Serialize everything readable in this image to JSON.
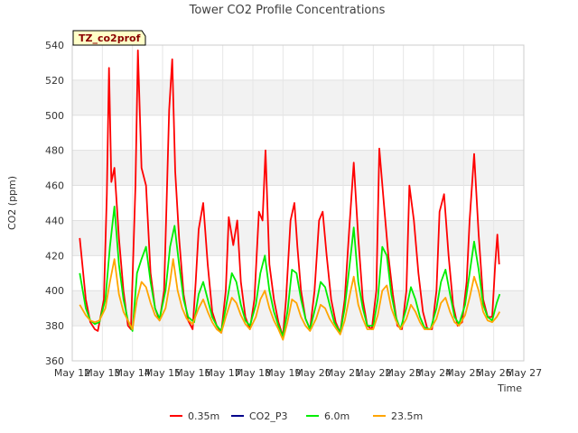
{
  "chart_data": {
    "type": "line",
    "title": "Tower CO2 Profile Concentrations",
    "xlabel": "Time",
    "ylabel": "CO2 (ppm)",
    "tag": "TZ_co2prof",
    "ylim": [
      360,
      540
    ],
    "yticks": [
      360,
      380,
      400,
      420,
      440,
      460,
      480,
      500,
      520,
      540
    ],
    "xlim": [
      12,
      27
    ],
    "xticks": [
      {
        "v": 12,
        "label": "May 12"
      },
      {
        "v": 13,
        "label": "May 13"
      },
      {
        "v": 14,
        "label": "May 14"
      },
      {
        "v": 15,
        "label": "May 15"
      },
      {
        "v": 16,
        "label": "May 16"
      },
      {
        "v": 17,
        "label": "May 17"
      },
      {
        "v": 18,
        "label": "May 18"
      },
      {
        "v": 19,
        "label": "May 19"
      },
      {
        "v": 20,
        "label": "May 20"
      },
      {
        "v": 21,
        "label": "May 21"
      },
      {
        "v": 22,
        "label": "May 22"
      },
      {
        "v": 23,
        "label": "May 23"
      },
      {
        "v": 24,
        "label": "May 24"
      },
      {
        "v": 25,
        "label": "May 25"
      },
      {
        "v": 26,
        "label": "May 26"
      },
      {
        "v": 27,
        "label": "May 27"
      }
    ],
    "series": [
      {
        "name": "0.35m",
        "color": "#ff0000",
        "points": [
          [
            12.25,
            430
          ],
          [
            12.45,
            395
          ],
          [
            12.6,
            382
          ],
          [
            12.75,
            378
          ],
          [
            12.85,
            377
          ],
          [
            13.05,
            395
          ],
          [
            13.15,
            455
          ],
          [
            13.22,
            527
          ],
          [
            13.3,
            462
          ],
          [
            13.4,
            470
          ],
          [
            13.55,
            430
          ],
          [
            13.7,
            400
          ],
          [
            13.85,
            380
          ],
          [
            13.95,
            378
          ],
          [
            14.1,
            460
          ],
          [
            14.18,
            537
          ],
          [
            14.3,
            470
          ],
          [
            14.45,
            460
          ],
          [
            14.6,
            410
          ],
          [
            14.75,
            390
          ],
          [
            14.9,
            383
          ],
          [
            15.05,
            400
          ],
          [
            15.15,
            460
          ],
          [
            15.22,
            503
          ],
          [
            15.32,
            532
          ],
          [
            15.42,
            468
          ],
          [
            15.55,
            430
          ],
          [
            15.7,
            398
          ],
          [
            15.85,
            383
          ],
          [
            16.0,
            378
          ],
          [
            16.1,
            405
          ],
          [
            16.2,
            435
          ],
          [
            16.35,
            450
          ],
          [
            16.5,
            415
          ],
          [
            16.65,
            388
          ],
          [
            16.8,
            380
          ],
          [
            16.95,
            376
          ],
          [
            17.1,
            400
          ],
          [
            17.2,
            442
          ],
          [
            17.35,
            426
          ],
          [
            17.48,
            440
          ],
          [
            17.6,
            405
          ],
          [
            17.75,
            385
          ],
          [
            17.9,
            378
          ],
          [
            18.05,
            395
          ],
          [
            18.2,
            445
          ],
          [
            18.32,
            440
          ],
          [
            18.42,
            480
          ],
          [
            18.55,
            415
          ],
          [
            18.7,
            395
          ],
          [
            18.85,
            382
          ],
          [
            19.0,
            374
          ],
          [
            19.1,
            395
          ],
          [
            19.25,
            440
          ],
          [
            19.38,
            450
          ],
          [
            19.48,
            425
          ],
          [
            19.6,
            400
          ],
          [
            19.75,
            384
          ],
          [
            19.9,
            378
          ],
          [
            20.05,
            400
          ],
          [
            20.2,
            440
          ],
          [
            20.32,
            445
          ],
          [
            20.45,
            420
          ],
          [
            20.6,
            395
          ],
          [
            20.75,
            382
          ],
          [
            20.9,
            376
          ],
          [
            21.05,
            395
          ],
          [
            21.2,
            435
          ],
          [
            21.35,
            473
          ],
          [
            21.5,
            430
          ],
          [
            21.65,
            395
          ],
          [
            21.8,
            380
          ],
          [
            21.95,
            378
          ],
          [
            22.1,
            400
          ],
          [
            22.2,
            481
          ],
          [
            22.35,
            450
          ],
          [
            22.5,
            420
          ],
          [
            22.65,
            398
          ],
          [
            22.8,
            380
          ],
          [
            22.95,
            378
          ],
          [
            23.1,
            400
          ],
          [
            23.2,
            460
          ],
          [
            23.35,
            440
          ],
          [
            23.5,
            410
          ],
          [
            23.65,
            388
          ],
          [
            23.8,
            378
          ],
          [
            23.95,
            378
          ],
          [
            24.1,
            400
          ],
          [
            24.2,
            445
          ],
          [
            24.35,
            455
          ],
          [
            24.5,
            420
          ],
          [
            24.65,
            392
          ],
          [
            24.8,
            380
          ],
          [
            24.95,
            382
          ],
          [
            25.1,
            405
          ],
          [
            25.2,
            440
          ],
          [
            25.35,
            478
          ],
          [
            25.5,
            432
          ],
          [
            25.65,
            395
          ],
          [
            25.8,
            385
          ],
          [
            25.95,
            385
          ],
          [
            26.05,
            415
          ],
          [
            26.12,
            432
          ],
          [
            26.18,
            415
          ]
        ]
      },
      {
        "name": "CO2_P3",
        "color": "#00008b",
        "points": []
      },
      {
        "name": "6.0m",
        "color": "#00ee00",
        "points": [
          [
            12.25,
            410
          ],
          [
            12.45,
            390
          ],
          [
            12.6,
            383
          ],
          [
            12.75,
            381
          ],
          [
            12.9,
            382
          ],
          [
            13.1,
            395
          ],
          [
            13.25,
            425
          ],
          [
            13.4,
            448
          ],
          [
            13.55,
            415
          ],
          [
            13.7,
            395
          ],
          [
            13.85,
            383
          ],
          [
            14.0,
            377
          ],
          [
            14.15,
            410
          ],
          [
            14.3,
            418
          ],
          [
            14.45,
            425
          ],
          [
            14.6,
            405
          ],
          [
            14.75,
            390
          ],
          [
            14.9,
            384
          ],
          [
            15.1,
            400
          ],
          [
            15.25,
            425
          ],
          [
            15.4,
            437
          ],
          [
            15.55,
            415
          ],
          [
            15.7,
            395
          ],
          [
            15.85,
            385
          ],
          [
            16.05,
            382
          ],
          [
            16.2,
            398
          ],
          [
            16.35,
            405
          ],
          [
            16.5,
            395
          ],
          [
            16.65,
            385
          ],
          [
            16.8,
            380
          ],
          [
            16.95,
            377
          ],
          [
            17.1,
            390
          ],
          [
            17.3,
            410
          ],
          [
            17.45,
            405
          ],
          [
            17.6,
            392
          ],
          [
            17.75,
            383
          ],
          [
            17.9,
            380
          ],
          [
            18.1,
            392
          ],
          [
            18.25,
            410
          ],
          [
            18.4,
            420
          ],
          [
            18.55,
            400
          ],
          [
            18.7,
            388
          ],
          [
            18.85,
            380
          ],
          [
            19.0,
            374
          ],
          [
            19.15,
            388
          ],
          [
            19.3,
            412
          ],
          [
            19.45,
            410
          ],
          [
            19.6,
            395
          ],
          [
            19.75,
            384
          ],
          [
            19.9,
            378
          ],
          [
            20.1,
            392
          ],
          [
            20.25,
            405
          ],
          [
            20.4,
            402
          ],
          [
            20.55,
            392
          ],
          [
            20.7,
            382
          ],
          [
            20.9,
            376
          ],
          [
            21.05,
            390
          ],
          [
            21.25,
            420
          ],
          [
            21.35,
            436
          ],
          [
            21.5,
            405
          ],
          [
            21.65,
            390
          ],
          [
            21.8,
            380
          ],
          [
            22.0,
            380
          ],
          [
            22.15,
            395
          ],
          [
            22.3,
            425
          ],
          [
            22.45,
            420
          ],
          [
            22.6,
            398
          ],
          [
            22.75,
            385
          ],
          [
            22.9,
            378
          ],
          [
            23.1,
            390
          ],
          [
            23.25,
            402
          ],
          [
            23.4,
            395
          ],
          [
            23.55,
            385
          ],
          [
            23.7,
            379
          ],
          [
            23.9,
            378
          ],
          [
            24.1,
            390
          ],
          [
            24.25,
            405
          ],
          [
            24.4,
            412
          ],
          [
            24.55,
            398
          ],
          [
            24.7,
            385
          ],
          [
            24.85,
            381
          ],
          [
            25.05,
            392
          ],
          [
            25.2,
            410
          ],
          [
            25.35,
            428
          ],
          [
            25.5,
            412
          ],
          [
            25.65,
            392
          ],
          [
            25.8,
            385
          ],
          [
            25.95,
            383
          ],
          [
            26.1,
            393
          ],
          [
            26.2,
            398
          ]
        ]
      },
      {
        "name": "23.5m",
        "color": "#ffa500",
        "points": [
          [
            12.25,
            392
          ],
          [
            12.45,
            386
          ],
          [
            12.6,
            383
          ],
          [
            12.75,
            382
          ],
          [
            12.9,
            383
          ],
          [
            13.1,
            390
          ],
          [
            13.25,
            405
          ],
          [
            13.4,
            418
          ],
          [
            13.55,
            398
          ],
          [
            13.7,
            388
          ],
          [
            13.85,
            383
          ],
          [
            14.0,
            378
          ],
          [
            14.15,
            395
          ],
          [
            14.3,
            405
          ],
          [
            14.45,
            402
          ],
          [
            14.6,
            393
          ],
          [
            14.75,
            386
          ],
          [
            14.9,
            383
          ],
          [
            15.1,
            390
          ],
          [
            15.25,
            405
          ],
          [
            15.35,
            418
          ],
          [
            15.5,
            400
          ],
          [
            15.65,
            390
          ],
          [
            15.8,
            384
          ],
          [
            16.0,
            381
          ],
          [
            16.2,
            390
          ],
          [
            16.35,
            395
          ],
          [
            16.5,
            388
          ],
          [
            16.65,
            382
          ],
          [
            16.8,
            378
          ],
          [
            16.95,
            376
          ],
          [
            17.1,
            385
          ],
          [
            17.3,
            396
          ],
          [
            17.45,
            393
          ],
          [
            17.6,
            386
          ],
          [
            17.75,
            381
          ],
          [
            17.9,
            378
          ],
          [
            18.1,
            385
          ],
          [
            18.25,
            395
          ],
          [
            18.4,
            400
          ],
          [
            18.55,
            390
          ],
          [
            18.7,
            383
          ],
          [
            18.85,
            378
          ],
          [
            19.0,
            372
          ],
          [
            19.15,
            382
          ],
          [
            19.3,
            395
          ],
          [
            19.45,
            393
          ],
          [
            19.6,
            385
          ],
          [
            19.75,
            380
          ],
          [
            19.9,
            377
          ],
          [
            20.1,
            384
          ],
          [
            20.25,
            392
          ],
          [
            20.4,
            390
          ],
          [
            20.55,
            384
          ],
          [
            20.7,
            380
          ],
          [
            20.9,
            375
          ],
          [
            21.05,
            383
          ],
          [
            21.25,
            400
          ],
          [
            21.35,
            408
          ],
          [
            21.5,
            392
          ],
          [
            21.65,
            384
          ],
          [
            21.8,
            378
          ],
          [
            22.0,
            378
          ],
          [
            22.15,
            386
          ],
          [
            22.3,
            400
          ],
          [
            22.45,
            403
          ],
          [
            22.6,
            390
          ],
          [
            22.75,
            383
          ],
          [
            22.9,
            378
          ],
          [
            23.1,
            384
          ],
          [
            23.25,
            392
          ],
          [
            23.4,
            388
          ],
          [
            23.55,
            382
          ],
          [
            23.7,
            378
          ],
          [
            23.9,
            378
          ],
          [
            24.1,
            384
          ],
          [
            24.25,
            393
          ],
          [
            24.4,
            396
          ],
          [
            24.55,
            388
          ],
          [
            24.7,
            382
          ],
          [
            24.85,
            380
          ],
          [
            25.05,
            386
          ],
          [
            25.2,
            396
          ],
          [
            25.35,
            408
          ],
          [
            25.5,
            400
          ],
          [
            25.65,
            388
          ],
          [
            25.8,
            383
          ],
          [
            25.95,
            382
          ],
          [
            26.1,
            385
          ],
          [
            26.2,
            388
          ]
        ]
      }
    ]
  }
}
